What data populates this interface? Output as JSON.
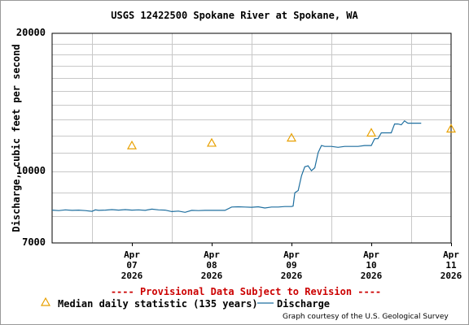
{
  "chart_data": {
    "type": "line",
    "title": "USGS 12422500 Spokane River at Spokane, WA",
    "xlabel": "",
    "ylabel": "Discharge, cubic feet per second",
    "y_scale": "log",
    "ylim": [
      7000,
      20000
    ],
    "xlim": [
      "2026-04-06T12:00",
      "2026-04-11T12:00"
    ],
    "y_ticks": [
      "20000",
      "10000",
      "7000"
    ],
    "x_ticks": [
      {
        "at": "2026-04-07T12:00",
        "line1": "Apr",
        "line2": "07",
        "line3": "2026"
      },
      {
        "at": "2026-04-08T12:00",
        "line1": "Apr",
        "line2": "08",
        "line3": "2026"
      },
      {
        "at": "2026-04-09T12:00",
        "line1": "Apr",
        "line2": "09",
        "line3": "2026"
      },
      {
        "at": "2026-04-10T12:00",
        "line1": "Apr",
        "line2": "10",
        "line3": "2026"
      },
      {
        "at": "2026-04-11T12:00",
        "line1": "Apr",
        "line2": "11",
        "line3": "2026"
      }
    ],
    "grid": true,
    "series": [
      {
        "name": "Discharge",
        "color": "#1f6f9f",
        "points": [
          [
            "2026-04-06T12:00",
            8250
          ],
          [
            "2026-04-06T14:00",
            8230
          ],
          [
            "2026-04-06T16:00",
            8260
          ],
          [
            "2026-04-06T18:00",
            8240
          ],
          [
            "2026-04-06T20:00",
            8250
          ],
          [
            "2026-04-06T22:00",
            8230
          ],
          [
            "2026-04-07T00:00",
            8200
          ],
          [
            "2026-04-07T01:00",
            8260
          ],
          [
            "2026-04-07T02:00",
            8240
          ],
          [
            "2026-04-07T04:00",
            8250
          ],
          [
            "2026-04-07T06:00",
            8270
          ],
          [
            "2026-04-07T08:00",
            8250
          ],
          [
            "2026-04-07T10:00",
            8270
          ],
          [
            "2026-04-07T12:00",
            8250
          ],
          [
            "2026-04-07T14:00",
            8260
          ],
          [
            "2026-04-07T16:00",
            8240
          ],
          [
            "2026-04-07T18:00",
            8290
          ],
          [
            "2026-04-07T20:00",
            8260
          ],
          [
            "2026-04-07T22:00",
            8250
          ],
          [
            "2026-04-08T00:00",
            8190
          ],
          [
            "2026-04-08T02:00",
            8210
          ],
          [
            "2026-04-08T04:00",
            8160
          ],
          [
            "2026-04-08T06:00",
            8240
          ],
          [
            "2026-04-08T08:00",
            8230
          ],
          [
            "2026-04-08T10:00",
            8240
          ],
          [
            "2026-04-08T12:00",
            8240
          ],
          [
            "2026-04-08T14:00",
            8240
          ],
          [
            "2026-04-08T16:00",
            8240
          ],
          [
            "2026-04-08T18:00",
            8380
          ],
          [
            "2026-04-08T20:00",
            8390
          ],
          [
            "2026-04-08T22:00",
            8380
          ],
          [
            "2026-04-09T00:00",
            8370
          ],
          [
            "2026-04-09T02:00",
            8390
          ],
          [
            "2026-04-09T04:00",
            8340
          ],
          [
            "2026-04-09T06:00",
            8380
          ],
          [
            "2026-04-09T08:00",
            8380
          ],
          [
            "2026-04-09T10:00",
            8400
          ],
          [
            "2026-04-09T12:00",
            8400
          ],
          [
            "2026-04-09T12:30",
            8420
          ],
          [
            "2026-04-09T13:00",
            9000
          ],
          [
            "2026-04-09T14:00",
            9100
          ],
          [
            "2026-04-09T15:00",
            9800
          ],
          [
            "2026-04-09T16:00",
            10250
          ],
          [
            "2026-04-09T17:00",
            10300
          ],
          [
            "2026-04-09T18:00",
            10050
          ],
          [
            "2026-04-09T19:00",
            10200
          ],
          [
            "2026-04-09T20:00",
            11000
          ],
          [
            "2026-04-09T21:00",
            11400
          ],
          [
            "2026-04-09T22:00",
            11350
          ],
          [
            "2026-04-10T00:00",
            11350
          ],
          [
            "2026-04-10T02:00",
            11300
          ],
          [
            "2026-04-10T04:00",
            11350
          ],
          [
            "2026-04-10T06:00",
            11350
          ],
          [
            "2026-04-10T08:00",
            11350
          ],
          [
            "2026-04-10T10:00",
            11400
          ],
          [
            "2026-04-10T12:00",
            11400
          ],
          [
            "2026-04-10T13:00",
            11800
          ],
          [
            "2026-04-10T14:00",
            11800
          ],
          [
            "2026-04-10T15:00",
            12150
          ],
          [
            "2026-04-10T17:00",
            12150
          ],
          [
            "2026-04-10T18:00",
            12150
          ],
          [
            "2026-04-10T19:00",
            12700
          ],
          [
            "2026-04-10T20:00",
            12700
          ],
          [
            "2026-04-10T21:00",
            12650
          ],
          [
            "2026-04-10T22:00",
            12900
          ],
          [
            "2026-04-10T23:00",
            12750
          ],
          [
            "2026-04-11T00:00",
            12750
          ],
          [
            "2026-04-11T01:00",
            12750
          ],
          [
            "2026-04-11T03:00",
            12750
          ]
        ]
      },
      {
        "name": "Median daily statistic (135 years)",
        "color": "#e8a000",
        "marker": "triangle",
        "points": [
          [
            "2026-04-07T12:00",
            11400
          ],
          [
            "2026-04-08T12:00",
            11550
          ],
          [
            "2026-04-09T12:00",
            11850
          ],
          [
            "2026-04-10T12:00",
            12150
          ],
          [
            "2026-04-11T12:00",
            12400
          ]
        ]
      }
    ]
  },
  "legend": {
    "median_label": "Median daily statistic (135 years)",
    "discharge_label": "Discharge"
  },
  "provisional_note": "---- Provisional Data Subject to Revision ----",
  "credit": "Graph courtesy of the U.S. Geological Survey"
}
